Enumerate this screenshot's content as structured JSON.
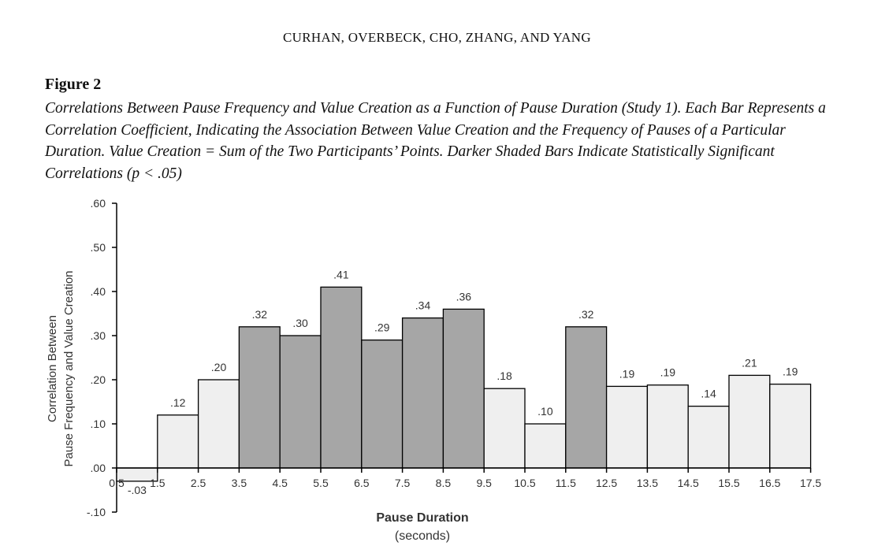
{
  "header": {
    "running_head": "CURHAN, OVERBECK, CHO, ZHANG, AND YANG"
  },
  "figure": {
    "label": "Figure 2",
    "caption": "Correlations Between Pause Frequency and Value Creation as a Function of Pause Duration (Study 1). Each Bar Represents a Correlation Coefficient, Indicating the Association Between Value Creation and the Frequency of Pauses of a Particular Duration. Value Creation = Sum of the Two Participants’ Points. Darker Shaded Bars Indicate Statistically Significant Correlations (p < .05)"
  },
  "chart_data": {
    "type": "bar",
    "title": "",
    "xlabel": "Pause Duration",
    "xlabel_sub": "(seconds)",
    "ylabel": "Correlation Between",
    "ylabel2": "Pause Frequency and Value Creation",
    "ylim": [
      -0.1,
      0.6
    ],
    "y_ticks": [
      {
        "value": 0.6,
        "label": ".60"
      },
      {
        "value": 0.5,
        "label": ".50"
      },
      {
        "value": 0.4,
        "label": ".40"
      },
      {
        "value": 0.3,
        "label": ".30"
      },
      {
        "value": 0.2,
        "label": ".20"
      },
      {
        "value": 0.1,
        "label": ".10"
      },
      {
        "value": 0.0,
        "label": ".00"
      },
      {
        "value": -0.1,
        "label": "-.10"
      }
    ],
    "x_ticks": [
      "0.5",
      "1.5",
      "2.5",
      "3.5",
      "4.5",
      "5.5",
      "6.5",
      "7.5",
      "8.5",
      "9.5",
      "10.5",
      "11.5",
      "12.5",
      "13.5",
      "14.5",
      "15.5",
      "16.5",
      "17.5"
    ],
    "bins": [
      {
        "from": 0.5,
        "to": 1.5,
        "value": -0.03,
        "label": "-.03",
        "significant": false
      },
      {
        "from": 1.5,
        "to": 2.5,
        "value": 0.12,
        "label": ".12",
        "significant": false
      },
      {
        "from": 2.5,
        "to": 3.5,
        "value": 0.2,
        "label": ".20",
        "significant": false
      },
      {
        "from": 3.5,
        "to": 4.5,
        "value": 0.32,
        "label": ".32",
        "significant": true
      },
      {
        "from": 4.5,
        "to": 5.5,
        "value": 0.3,
        "label": ".30",
        "significant": true
      },
      {
        "from": 5.5,
        "to": 6.5,
        "value": 0.41,
        "label": ".41",
        "significant": true
      },
      {
        "from": 6.5,
        "to": 7.5,
        "value": 0.29,
        "label": ".29",
        "significant": true
      },
      {
        "from": 7.5,
        "to": 8.5,
        "value": 0.34,
        "label": ".34",
        "significant": true
      },
      {
        "from": 8.5,
        "to": 9.5,
        "value": 0.36,
        "label": ".36",
        "significant": true
      },
      {
        "from": 9.5,
        "to": 10.5,
        "value": 0.18,
        "label": ".18",
        "significant": false
      },
      {
        "from": 10.5,
        "to": 11.5,
        "value": 0.1,
        "label": ".10",
        "significant": false
      },
      {
        "from": 11.5,
        "to": 12.5,
        "value": 0.32,
        "label": ".32",
        "significant": true
      },
      {
        "from": 12.5,
        "to": 13.5,
        "value": 0.185,
        "label": ".19",
        "significant": false
      },
      {
        "from": 13.5,
        "to": 14.5,
        "value": 0.188,
        "label": ".19",
        "significant": false
      },
      {
        "from": 14.5,
        "to": 15.5,
        "value": 0.14,
        "label": ".14",
        "significant": false
      },
      {
        "from": 15.5,
        "to": 16.5,
        "value": 0.21,
        "label": ".21",
        "significant": false
      },
      {
        "from": 16.5,
        "to": 17.5,
        "value": 0.19,
        "label": ".19",
        "significant": false
      }
    ],
    "colors": {
      "significant": "#a6a6a6",
      "nonsignificant": "#efefef",
      "stroke": "#000000"
    }
  }
}
